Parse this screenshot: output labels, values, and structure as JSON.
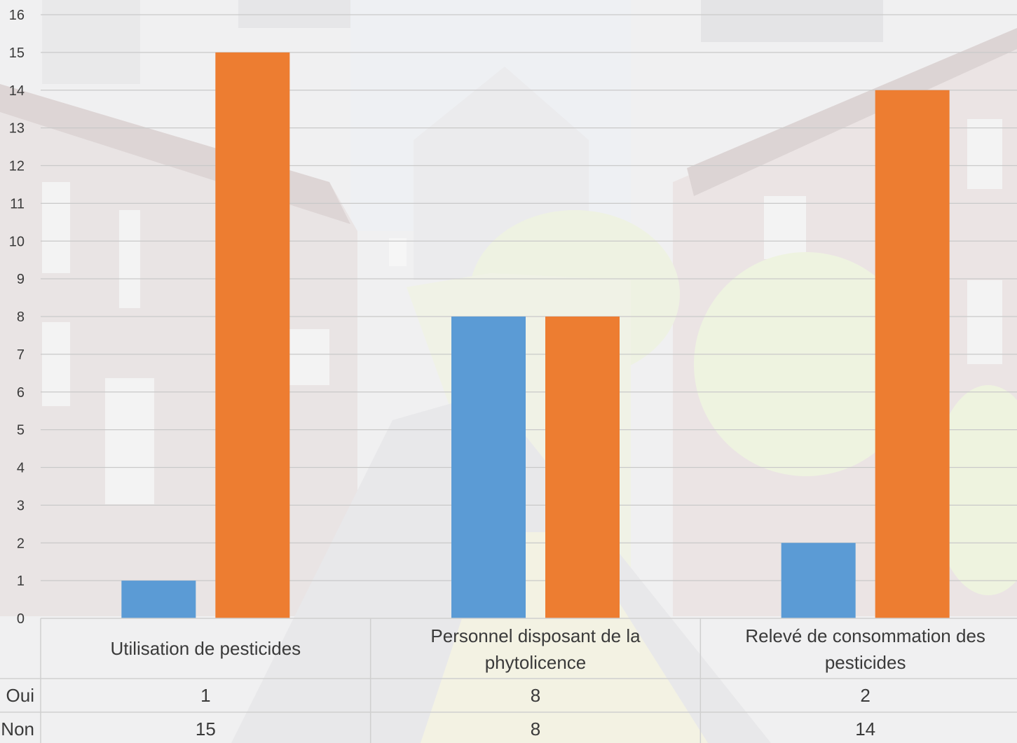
{
  "chart_data": {
    "type": "bar",
    "categories": [
      [
        "Utilisation de pesticides"
      ],
      [
        "Personnel disposant de la",
        "phytolicence"
      ],
      [
        "Relevé de consommation des",
        "pesticides"
      ]
    ],
    "series": [
      {
        "name": "Oui",
        "values": [
          1,
          8,
          2
        ],
        "color": "#5b9bd5"
      },
      {
        "name": "Non",
        "values": [
          15,
          8,
          14
        ],
        "color": "#ed7d31"
      }
    ],
    "ylim": [
      0,
      16
    ],
    "yticks": [
      0,
      1,
      2,
      3,
      4,
      5,
      6,
      7,
      8,
      9,
      10,
      11,
      12,
      13,
      14,
      15,
      16
    ],
    "grid": true,
    "data_table": true
  }
}
